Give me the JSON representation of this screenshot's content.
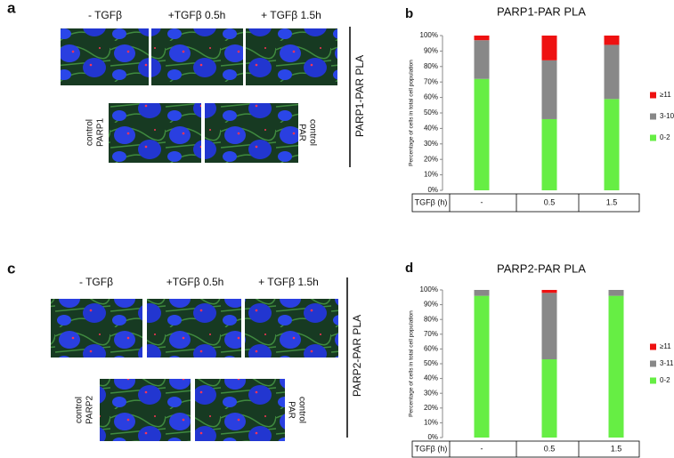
{
  "panels": [
    {
      "letter": "a",
      "column_labels": [
        "- TGFβ",
        "+TGFβ 0.5h",
        "+ TGFβ 1.5h"
      ],
      "control_labels": [
        [
          "PARP1",
          "control"
        ],
        [
          "PAR",
          "control"
        ]
      ],
      "side_label": "PARP1-PAR PLA"
    },
    {
      "letter": "c",
      "column_labels": [
        "- TGFβ",
        "+TGFβ 0.5h",
        "+ TGFβ 1.5h"
      ],
      "control_labels": [
        [
          "PARP2",
          "control"
        ],
        [
          "PAR",
          "control"
        ]
      ],
      "side_label": "PARP2-PAR PLA"
    }
  ],
  "chart_data": [
    {
      "type": "stacked_bar",
      "letter": "b",
      "title": "PARP1-PAR PLA",
      "ylabel": "Percentage of cells in total cell population",
      "category_header": "TGFβ (h)",
      "categories": [
        "-",
        "0.5",
        "1.5"
      ],
      "series": [
        {
          "name": "0-2",
          "color": "#66ee44",
          "values": [
            72,
            46,
            59
          ]
        },
        {
          "name": "3-10",
          "color": "#888888",
          "values": [
            25,
            38,
            35
          ]
        },
        {
          "name": "≥11",
          "color": "#ee1111",
          "values": [
            3,
            16,
            6
          ]
        }
      ],
      "ylim": [
        0,
        100
      ],
      "yticks": [
        {
          "value": 0,
          "label": "0%"
        },
        {
          "value": 10,
          "label": "10%"
        },
        {
          "value": 20,
          "label": "20%"
        },
        {
          "value": 30,
          "label": "30%"
        },
        {
          "value": 40,
          "label": "40%"
        },
        {
          "value": 50,
          "label": "50%"
        },
        {
          "value": 60,
          "label": "60%"
        },
        {
          "value": 70,
          "label": "70%"
        },
        {
          "value": 80,
          "label": "80%"
        },
        {
          "value": 90,
          "label": "90%"
        },
        {
          "value": 100,
          "label": "100%"
        }
      ]
    },
    {
      "type": "stacked_bar",
      "letter": "d",
      "title": "PARP2-PAR PLA",
      "ylabel": "Percentage of cells in total cell population",
      "category_header": "TGFβ (h)",
      "categories": [
        "-",
        "0.5",
        "1.5"
      ],
      "series": [
        {
          "name": "0-2",
          "color": "#66ee44",
          "values": [
            96,
            53,
            96
          ]
        },
        {
          "name": "3-11",
          "color": "#888888",
          "values": [
            4,
            45,
            4
          ]
        },
        {
          "name": "≥11",
          "color": "#ee1111",
          "values": [
            0,
            2,
            0
          ]
        }
      ],
      "ylim": [
        0,
        100
      ],
      "yticks": [
        {
          "value": 0,
          "label": "0%"
        },
        {
          "value": 10,
          "label": "10%"
        },
        {
          "value": 20,
          "label": "20%"
        },
        {
          "value": 30,
          "label": "30%"
        },
        {
          "value": 40,
          "label": "40%"
        },
        {
          "value": 50,
          "label": "50%"
        },
        {
          "value": 60,
          "label": "60%"
        },
        {
          "value": 70,
          "label": "70%"
        },
        {
          "value": 80,
          "label": "80%"
        },
        {
          "value": 90,
          "label": "90%"
        },
        {
          "value": 100,
          "label": "100%"
        }
      ]
    }
  ]
}
